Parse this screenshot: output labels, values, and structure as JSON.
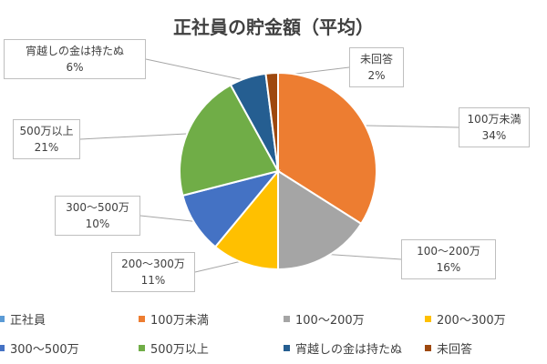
{
  "chart_data": {
    "type": "pie",
    "title": "正社員の貯金額（平均）",
    "series": [
      {
        "name": "正社員",
        "categories": [
          "100万未満",
          "100〜200万",
          "200〜300万",
          "300〜500万",
          "500万以上",
          "宵越しの金は持たぬ",
          "未回答"
        ],
        "values": [
          34,
          16,
          11,
          10,
          21,
          6,
          2
        ],
        "value_labels": [
          "34%",
          "16%",
          "11%",
          "10%",
          "21%",
          "6%",
          "2%"
        ]
      }
    ],
    "colors": [
      "#ed7d31",
      "#a5a5a5",
      "#ffc000",
      "#4472c4",
      "#70ad47",
      "#255e91",
      "#9e480e"
    ],
    "legend_placement": "bottom",
    "series_legend_label": "正社員"
  }
}
